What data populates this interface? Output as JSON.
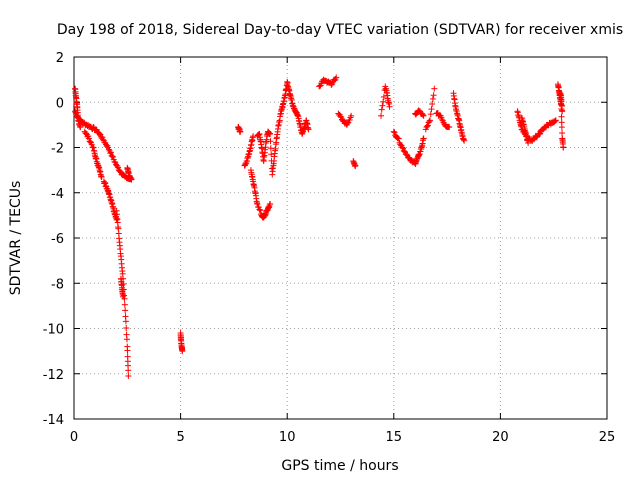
{
  "chart_data": {
    "type": "scatter",
    "title": "Day 198 of 2018, Sidereal Day-to-day VTEC variation (SDTVAR) for receiver xmis",
    "xlabel": "GPS time / hours",
    "ylabel": "SDTVAR / TECUs",
    "xlim": [
      0,
      25
    ],
    "ylim": [
      -14,
      2
    ],
    "xticks": [
      0,
      5,
      10,
      15,
      20,
      25
    ],
    "yticks": [
      2,
      0,
      -2,
      -4,
      -6,
      -8,
      -10,
      -12,
      -14
    ],
    "xtick_labels": [
      "0",
      "5",
      "10",
      "15",
      "20",
      "25"
    ],
    "ytick_labels": [
      "2",
      "0",
      "-2",
      "-4",
      "-6",
      "-8",
      "-10",
      "-12",
      "-14"
    ],
    "grid": true,
    "marker": "+",
    "series": [
      {
        "name": "SDTVAR",
        "color": "#ff0000",
        "segments": [
          {
            "x": [
              0.05,
              0.2,
              0.4,
              0.6,
              0.8,
              1.0,
              1.2,
              1.4,
              1.6,
              1.8,
              2.0,
              2.2,
              2.4,
              2.6
            ],
            "y": [
              -0.4,
              -0.7,
              -0.9,
              -1.0,
              -1.1,
              -1.2,
              -1.4,
              -1.7,
              -2.0,
              -2.4,
              -2.8,
              -3.1,
              -3.3,
              -3.4
            ]
          },
          {
            "x": [
              0.05,
              0.1,
              0.15,
              0.2,
              0.3
            ],
            "y": [
              0.6,
              0.2,
              -0.2,
              -0.8,
              -1.1
            ]
          },
          {
            "x": [
              0.5,
              0.7,
              0.9,
              1.0,
              1.1,
              1.2,
              1.3
            ],
            "y": [
              -1.3,
              -1.6,
              -2.0,
              -2.4,
              -2.7,
              -3.0,
              -3.3
            ]
          },
          {
            "x": [
              1.4,
              1.5,
              1.6,
              1.7,
              1.8,
              1.9,
              2.0
            ],
            "y": [
              -3.5,
              -3.7,
              -3.9,
              -4.2,
              -4.5,
              -4.9,
              -5.2
            ]
          },
          {
            "x": [
              2.0,
              2.1,
              2.2,
              2.3,
              2.4,
              2.5,
              2.55
            ],
            "y": [
              -4.8,
              -5.8,
              -6.8,
              -7.8,
              -9.2,
              -10.8,
              -12.1
            ]
          },
          {
            "x": [
              2.2,
              2.25,
              2.3
            ],
            "y": [
              -7.8,
              -8.2,
              -8.6
            ]
          },
          {
            "x": [
              2.5,
              2.55,
              2.6,
              2.7
            ],
            "y": [
              -2.9,
              -3.1,
              -3.3,
              -3.4
            ]
          },
          {
            "x": [
              5.0,
              5.02,
              5.05,
              5.08
            ],
            "y": [
              -10.2,
              -10.5,
              -10.8,
              -11.0
            ]
          },
          {
            "x": [
              7.7,
              7.75,
              7.8
            ],
            "y": [
              -1.1,
              -1.2,
              -1.3
            ]
          },
          {
            "x": [
              8.0,
              8.1,
              8.2,
              8.3,
              8.4
            ],
            "y": [
              -2.8,
              -2.6,
              -2.3,
              -1.9,
              -1.5
            ]
          },
          {
            "x": [
              8.3,
              8.4,
              8.5,
              8.6,
              8.8,
              8.9,
              9.0,
              9.1,
              9.2
            ],
            "y": [
              -3.0,
              -3.5,
              -4.0,
              -4.5,
              -5.0,
              -5.1,
              -4.9,
              -4.7,
              -4.5
            ]
          },
          {
            "x": [
              8.6,
              8.7,
              8.8,
              8.9,
              9.0,
              9.1
            ],
            "y": [
              -1.5,
              -1.4,
              -2.0,
              -2.6,
              -1.8,
              -1.3
            ]
          },
          {
            "x": [
              9.1,
              9.2,
              9.3,
              9.4,
              9.5,
              9.6,
              9.7,
              9.8,
              9.9,
              10.0
            ],
            "y": [
              -1.3,
              -1.4,
              -3.2,
              -2.4,
              -1.6,
              -1.0,
              -0.5,
              -0.1,
              0.3,
              0.8
            ]
          },
          {
            "x": [
              10.0,
              10.1,
              10.2,
              10.3,
              10.4,
              10.5,
              10.6,
              10.7,
              10.8,
              10.9,
              11.0
            ],
            "y": [
              0.9,
              0.5,
              0.1,
              -0.2,
              -0.4,
              -0.6,
              -1.0,
              -1.4,
              -1.1,
              -0.8,
              -1.2
            ]
          },
          {
            "x": [
              11.5,
              11.7,
              11.9,
              12.1,
              12.3
            ],
            "y": [
              0.7,
              1.0,
              0.9,
              0.8,
              1.1
            ]
          },
          {
            "x": [
              12.4,
              12.6,
              12.8,
              13.0
            ],
            "y": [
              -0.5,
              -0.8,
              -1.0,
              -0.6
            ]
          },
          {
            "x": [
              13.1,
              13.2
            ],
            "y": [
              -2.6,
              -2.8
            ]
          },
          {
            "x": [
              14.4,
              14.6,
              14.7,
              14.8
            ],
            "y": [
              -0.6,
              0.7,
              0.3,
              -0.2
            ]
          },
          {
            "x": [
              15.0,
              15.2,
              15.4,
              15.6,
              15.8,
              16.0,
              16.1,
              16.2,
              16.3,
              16.4
            ],
            "y": [
              -1.3,
              -1.6,
              -2.0,
              -2.3,
              -2.6,
              -2.7,
              -2.5,
              -2.3,
              -2.0,
              -1.6
            ]
          },
          {
            "x": [
              16.0,
              16.2,
              16.4
            ],
            "y": [
              -0.5,
              -0.4,
              -0.6
            ]
          },
          {
            "x": [
              16.5,
              16.7,
              16.9
            ],
            "y": [
              -1.2,
              -0.8,
              0.6
            ]
          },
          {
            "x": [
              17.0,
              17.2,
              17.4,
              17.6
            ],
            "y": [
              -0.5,
              -0.6,
              -1.0,
              -1.1
            ]
          },
          {
            "x": [
              17.8,
              17.9,
              18.0,
              18.1,
              18.2,
              18.3
            ],
            "y": [
              0.4,
              -0.2,
              -0.6,
              -1.0,
              -1.4,
              -1.7
            ]
          },
          {
            "x": [
              20.8,
              20.9,
              21.0,
              21.2,
              21.4,
              21.6,
              21.8,
              22.0,
              22.2,
              22.4,
              22.6
            ],
            "y": [
              -0.4,
              -0.8,
              -1.2,
              -1.5,
              -1.7,
              -1.6,
              -1.4,
              -1.2,
              -1.0,
              -0.9,
              -0.8
            ]
          },
          {
            "x": [
              21.0,
              21.1,
              21.2,
              21.3
            ],
            "y": [
              -0.7,
              -1.0,
              -1.4,
              -1.8
            ]
          },
          {
            "x": [
              22.7,
              22.75,
              22.8,
              22.85,
              22.9,
              22.95
            ],
            "y": [
              0.8,
              0.5,
              0.2,
              -0.1,
              -1.6,
              -2.0
            ]
          },
          {
            "x": [
              22.8,
              22.85,
              22.9
            ],
            "y": [
              0.4,
              0.2,
              -0.4
            ]
          }
        ]
      }
    ]
  }
}
